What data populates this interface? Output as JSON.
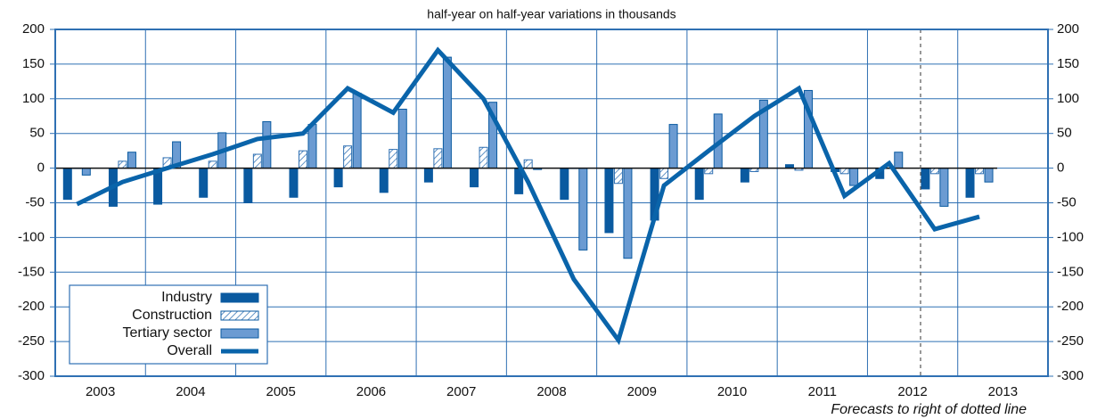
{
  "chart_data": {
    "type": "bar",
    "title": "half-year on half-year variations in thousands",
    "annotation": "Forecasts to right of dotted line",
    "categories": [
      "2003",
      null,
      "2004",
      null,
      "2005",
      null,
      "2006",
      null,
      "2007",
      null,
      "2008",
      null,
      "2009",
      null,
      "2010",
      null,
      "2011",
      null,
      "2012",
      null,
      "2013"
    ],
    "series": [
      {
        "name": "Industry",
        "color": "#0a5aa0",
        "kind": "bar",
        "values": [
          -45,
          -55,
          -52,
          -42,
          -50,
          -42,
          -27,
          -35,
          -20,
          -27,
          -37,
          -45,
          -93,
          -75,
          -45,
          -20,
          5,
          -5,
          -15,
          -30,
          -42
        ]
      },
      {
        "name": "Construction",
        "color": "#2f70b3",
        "kind": "hatched",
        "values": [
          0,
          10,
          15,
          10,
          20,
          25,
          32,
          27,
          28,
          30,
          12,
          0,
          -22,
          -15,
          -8,
          -5,
          -3,
          -8,
          0,
          -8,
          -8
        ]
      },
      {
        "name": "Tertiary sector",
        "color": "#6b9bd2",
        "kind": "bar",
        "values": [
          -10,
          23,
          38,
          51,
          67,
          63,
          108,
          85,
          160,
          95,
          -2,
          -118,
          -130,
          63,
          78,
          98,
          112,
          -25,
          23,
          -55,
          -20
        ]
      },
      {
        "name": "Overall",
        "color": "#0a64aa",
        "kind": "line",
        "values": [
          -52,
          -20,
          0,
          20,
          42,
          50,
          115,
          80,
          170,
          100,
          -20,
          -160,
          -248,
          -25,
          25,
          75,
          115,
          -40,
          7,
          -88,
          -70
        ]
      }
    ],
    "ylim": [
      -300,
      200
    ],
    "yticks": [
      -300,
      -250,
      -200,
      -150,
      -100,
      -50,
      0,
      50,
      100,
      150,
      200
    ],
    "grid": true
  }
}
